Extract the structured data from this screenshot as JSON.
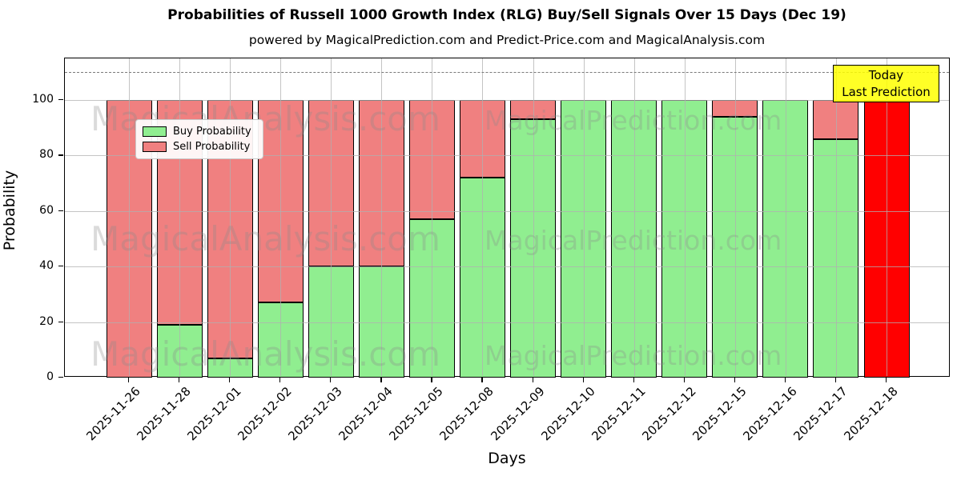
{
  "title": "Probabilities of Russell 1000 Growth Index (RLG) Buy/Sell Signals Over 15 Days (Dec 19)",
  "subtitle": "powered by MagicalPrediction.com and Predict-Price.com and MagicalAnalysis.com",
  "legend": {
    "items": [
      {
        "label": "Buy Probability",
        "color": "#90EE90"
      },
      {
        "label": "Sell Probability",
        "color": "#F08080"
      }
    ]
  },
  "annotation": {
    "line1": "Today",
    "line2": "Last Prediction",
    "bg_color": "#FFFF00"
  },
  "watermarks": {
    "left": "MagicalAnalysis.com",
    "right": "MagicalPrediction.com"
  },
  "colors": {
    "buy": "#90EE90",
    "sell": "#F08080",
    "last_prediction_bar": "#FF0000",
    "grid": "#b0b0b0",
    "dashed_line": "#7a7a7a",
    "annotation_bg": "#FFFF00"
  },
  "chart_data": {
    "type": "bar",
    "stacked": true,
    "title": "Probabilities of Russell 1000 Growth Index (RLG) Buy/Sell Signals Over 15 Days (Dec 19)",
    "xlabel": "Days",
    "ylabel": "Probability",
    "categories": [
      "2025-11-26",
      "2025-11-28",
      "2025-12-01",
      "2025-12-02",
      "2025-12-03",
      "2025-12-04",
      "2025-12-05",
      "2025-12-08",
      "2025-12-09",
      "2025-12-10",
      "2025-12-11",
      "2025-12-12",
      "2025-12-15",
      "2025-12-16",
      "2025-12-17",
      "2025-12-18"
    ],
    "series": [
      {
        "name": "Buy Probability",
        "color": "#90EE90",
        "values": [
          0,
          19,
          7,
          27,
          40,
          40,
          57,
          72,
          93,
          100,
          100,
          100,
          94,
          100,
          86,
          0
        ]
      },
      {
        "name": "Sell Probability",
        "color": "#F08080",
        "values": [
          100,
          81,
          93,
          73,
          60,
          60,
          43,
          28,
          7,
          0,
          0,
          0,
          6,
          0,
          14,
          100
        ]
      }
    ],
    "last_bar_color": "#FF0000",
    "ylim": [
      0,
      115
    ],
    "yticks": [
      0,
      20,
      40,
      60,
      80,
      100
    ],
    "dashed_line_y": 110,
    "grid": true,
    "legend_position": "upper left",
    "annotation": "Today / Last Prediction on 2025-12-18"
  }
}
